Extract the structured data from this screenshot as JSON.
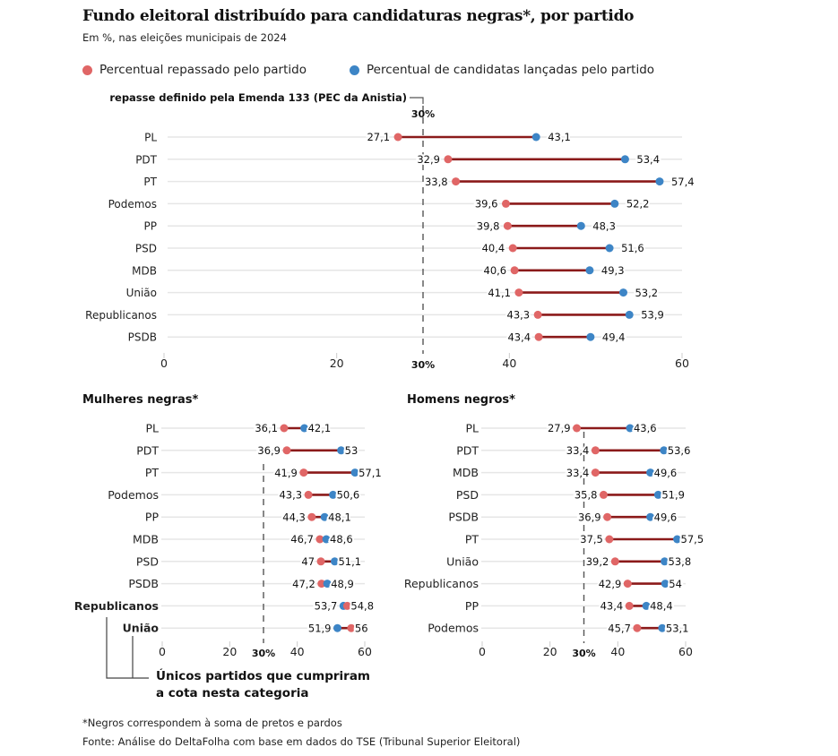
{
  "title": "Fundo eleitoral distribuído para candidaturas negras*, por partido",
  "subtitle": "Em %, nas eleições municipais de 2024",
  "legend": {
    "repassado": "Percentual repassado pelo partido",
    "lancadas": "Percentual de candidatas lançadas pelo partido"
  },
  "colors": {
    "repassado": "#e06666",
    "lancadas": "#3d85c6",
    "connector": "#8b1a1a",
    "gridline": "#e6e6e6",
    "reference": "#555555"
  },
  "annotation_reference": "repasse definido pela Emenda 133 (PEC da Anistia)",
  "annotation_cumpriram": [
    "Únicos partidos que cumpriram",
    "a cota nesta categoria"
  ],
  "footnotes": {
    "negros": "*Negros correspondem à soma de pretos e pardos",
    "fonte": "Fonte: Análise do DeltaFolha com base em dados do TSE (Tribunal Superior Eleitoral)"
  },
  "chart_data": [
    {
      "type": "dumbbell",
      "title": "Total",
      "xlim": [
        0,
        60
      ],
      "xticks": [
        "0",
        "20",
        "40",
        "60"
      ],
      "reference_line": {
        "value": 30,
        "label": "30%"
      },
      "categories": [
        "PL",
        "PDT",
        "PT",
        "Podemos",
        "PP",
        "PSD",
        "MDB",
        "União",
        "Republicanos",
        "PSDB"
      ],
      "series": [
        {
          "name": "Percentual repassado pelo partido",
          "values": [
            27.1,
            32.9,
            33.8,
            39.6,
            39.8,
            40.4,
            40.6,
            41.1,
            43.3,
            43.4
          ],
          "labels": [
            "27,1",
            "32,9",
            "33,8",
            "39,6",
            "39,8",
            "40,4",
            "40,6",
            "41,1",
            "43,3",
            "43,4"
          ]
        },
        {
          "name": "Percentual de candidatas lançadas pelo partido",
          "values": [
            43.1,
            53.4,
            57.4,
            52.2,
            48.3,
            51.6,
            49.3,
            53.2,
            53.9,
            49.4
          ],
          "labels": [
            "43,1",
            "53,4",
            "57,4",
            "52,2",
            "48,3",
            "51,6",
            "49,3",
            "53,2",
            "53,9",
            "49,4"
          ]
        }
      ]
    },
    {
      "type": "dumbbell",
      "title": "Mulheres negras*",
      "xlim": [
        0,
        60
      ],
      "xticks": [
        "0",
        "20",
        "40",
        "60"
      ],
      "reference_line": {
        "value": 30,
        "label": "30%"
      },
      "categories": [
        "PL",
        "PDT",
        "PT",
        "Podemos",
        "PP",
        "MDB",
        "PSD",
        "PSDB",
        "Republicanos",
        "União"
      ],
      "highlighted": [
        "Republicanos",
        "União"
      ],
      "series": [
        {
          "name": "Percentual repassado pelo partido",
          "values": [
            36.1,
            36.9,
            41.9,
            43.3,
            44.3,
            46.7,
            47,
            47.2,
            54.8,
            56
          ],
          "labels": [
            "36,1",
            "36,9",
            "41,9",
            "43,3",
            "44,3",
            "46,7",
            "47",
            "47,2",
            "54,8",
            "56"
          ]
        },
        {
          "name": "Percentual de candidatas lançadas pelo partido",
          "values": [
            42.1,
            53,
            57.1,
            50.6,
            48.1,
            48.6,
            51.1,
            48.9,
            53.7,
            51.9
          ],
          "labels": [
            "42,1",
            "53",
            "57,1",
            "50,6",
            "48,1",
            "48,6",
            "51,1",
            "48,9",
            "53,7",
            "51,9"
          ]
        }
      ]
    },
    {
      "type": "dumbbell",
      "title": "Homens negros*",
      "xlim": [
        0,
        60
      ],
      "xticks": [
        "0",
        "20",
        "40",
        "60"
      ],
      "reference_line": {
        "value": 30,
        "label": "30%"
      },
      "categories": [
        "PL",
        "PDT",
        "MDB",
        "PSD",
        "PSDB",
        "PT",
        "União",
        "Republicanos",
        "PP",
        "Podemos"
      ],
      "series": [
        {
          "name": "Percentual repassado pelo partido",
          "values": [
            27.9,
            33.4,
            33.4,
            35.8,
            36.9,
            37.5,
            39.2,
            42.9,
            43.4,
            45.7
          ],
          "labels": [
            "27,9",
            "33,4",
            "33,4",
            "35,8",
            "36,9",
            "37,5",
            "39,2",
            "42,9",
            "43,4",
            "45,7"
          ]
        },
        {
          "name": "Percentual de candidatas lançadas pelo partido",
          "values": [
            43.6,
            53.6,
            49.6,
            51.9,
            49.6,
            57.5,
            53.8,
            54,
            48.4,
            53.1
          ],
          "labels": [
            "43,6",
            "53,6",
            "49,6",
            "51,9",
            "49,6",
            "57,5",
            "53,8",
            "54",
            "48,4",
            "53,1"
          ]
        }
      ]
    }
  ]
}
